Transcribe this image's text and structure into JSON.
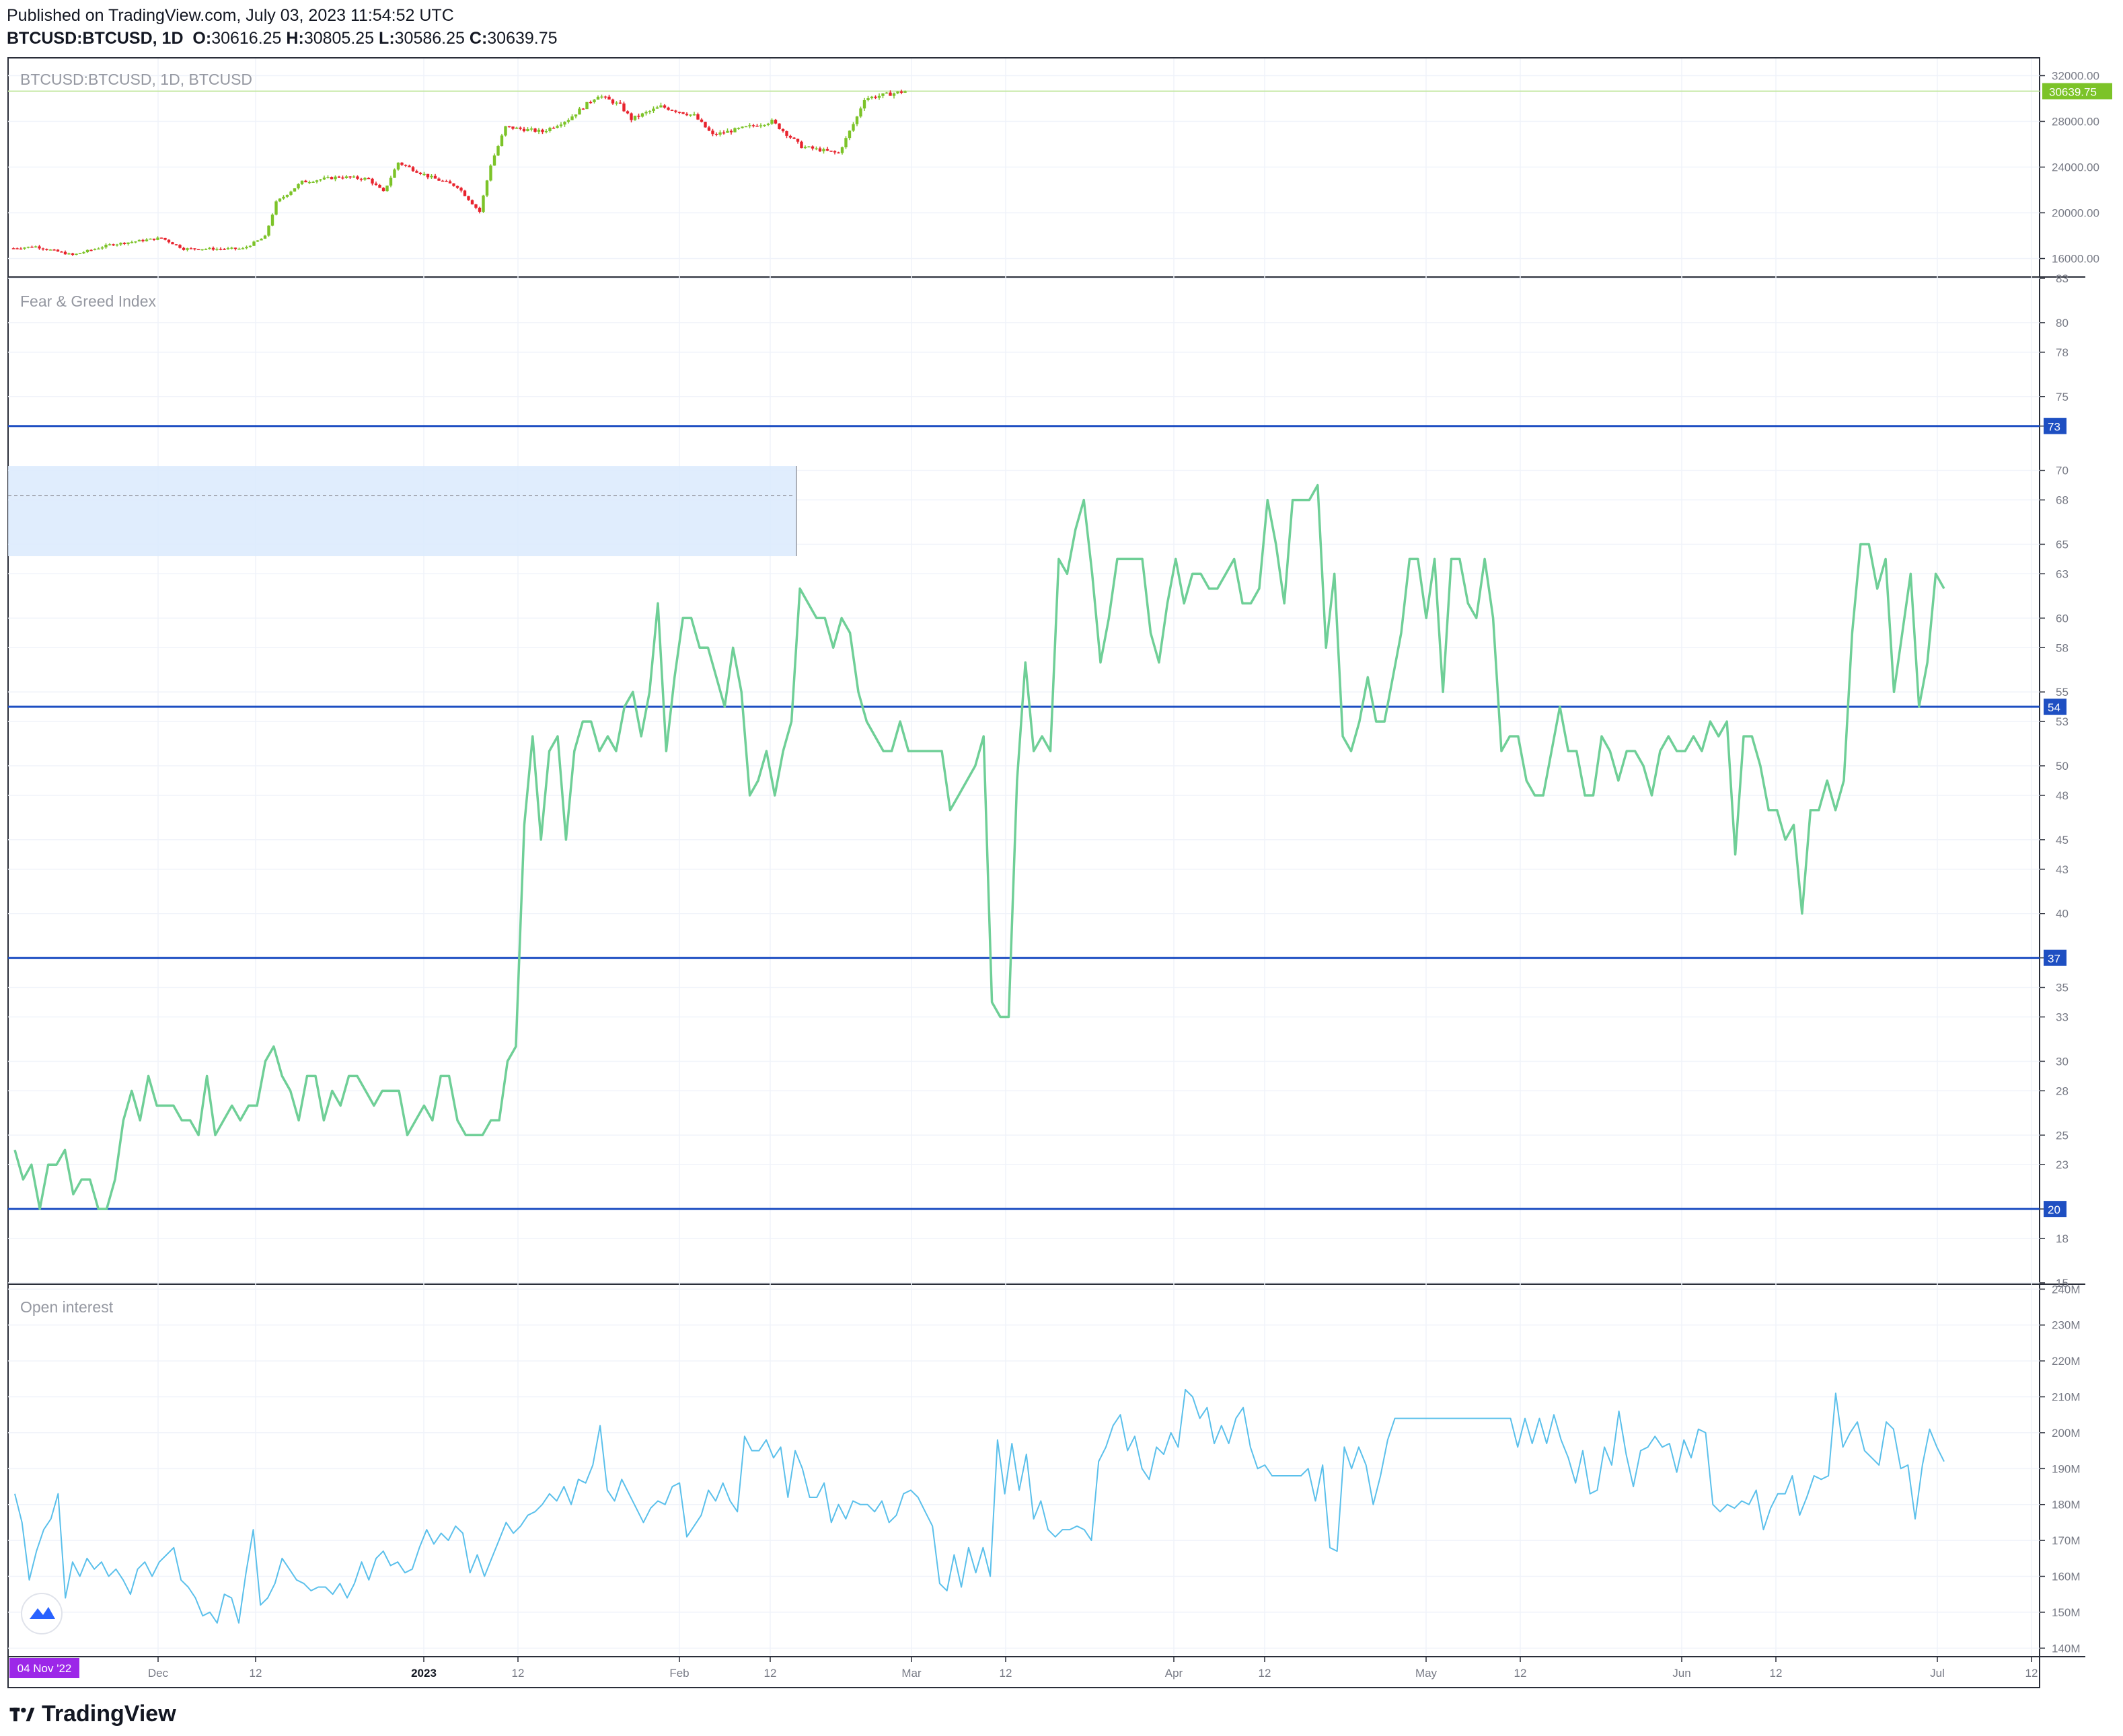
{
  "header": {
    "published": "Published on TradingView.com, July 03, 2023 11:54:52 UTC",
    "symbol": "BTCUSD:BTCUSD, 1D",
    "o_label": "O:",
    "o": "30616.25",
    "h_label": "H:",
    "h": "30805.25",
    "l_label": "L:",
    "l": "30586.25",
    "c_label": "C:",
    "c": "30639.75"
  },
  "panes": {
    "price_title": "BTCUSD:BTCUSD, 1D, BTCUSD",
    "fg_title": "Fear & Greed Index",
    "oi_title": "Open interest"
  },
  "colors": {
    "up": "#7cc328",
    "down": "#e8232d",
    "fg_line": "#6fcf97",
    "oi_line": "#5bc0eb",
    "hline": "#1e4fc2",
    "grid": "#f0f3fa",
    "price_tag": "#7cc328",
    "date_tag": "#9c27e8"
  },
  "footer": {
    "brand": "TradingView"
  },
  "date_tag": "04 Nov '22",
  "chart_data": [
    {
      "type": "candlestick",
      "title": "BTCUSD:BTCUSD, 1D, BTCUSD",
      "y_ticks": [
        "32000.00",
        "28000.00",
        "24000.00",
        "20000.00",
        "16000.00"
      ],
      "last_price": "30639.75",
      "ylim": [
        14500,
        33500
      ],
      "close_path": [
        {
          "date": "2022-11-04",
          "close": 16900
        },
        {
          "date": "2022-11-10",
          "close": 17050
        },
        {
          "date": "2022-11-20",
          "close": 16300
        },
        {
          "date": "2022-11-30",
          "close": 17200
        },
        {
          "date": "2022-12-14",
          "close": 17800
        },
        {
          "date": "2022-12-20",
          "close": 16850
        },
        {
          "date": "2023-01-05",
          "close": 16850
        },
        {
          "date": "2023-01-11",
          "close": 17900
        },
        {
          "date": "2023-01-14",
          "close": 20900
        },
        {
          "date": "2023-01-21",
          "close": 22700
        },
        {
          "date": "2023-01-31",
          "close": 23150
        },
        {
          "date": "2023-02-08",
          "close": 22950
        },
        {
          "date": "2023-02-12",
          "close": 21800
        },
        {
          "date": "2023-02-16",
          "close": 24400
        },
        {
          "date": "2023-02-24",
          "close": 23200
        },
        {
          "date": "2023-03-04",
          "close": 22300
        },
        {
          "date": "2023-03-10",
          "close": 20100
        },
        {
          "date": "2023-03-13",
          "close": 24200
        },
        {
          "date": "2023-03-17",
          "close": 27500
        },
        {
          "date": "2023-03-27",
          "close": 27100
        },
        {
          "date": "2023-04-03",
          "close": 28200
        },
        {
          "date": "2023-04-11",
          "close": 30300
        },
        {
          "date": "2023-04-17",
          "close": 29400
        },
        {
          "date": "2023-04-20",
          "close": 28200
        },
        {
          "date": "2023-04-28",
          "close": 29300
        },
        {
          "date": "2023-05-07",
          "close": 28500
        },
        {
          "date": "2023-05-12",
          "close": 26800
        },
        {
          "date": "2023-05-28",
          "close": 28000
        },
        {
          "date": "2023-06-05",
          "close": 25800
        },
        {
          "date": "2023-06-15",
          "close": 25200
        },
        {
          "date": "2023-06-20",
          "close": 28400
        },
        {
          "date": "2023-06-22",
          "close": 30000
        },
        {
          "date": "2023-07-03",
          "close": 30640
        }
      ]
    },
    {
      "type": "line",
      "title": "Fear & Greed Index",
      "y_ticks": [
        83,
        80,
        78,
        75,
        73,
        70,
        68,
        65,
        63,
        60,
        58,
        55,
        53,
        50,
        48,
        45,
        43,
        40,
        37,
        35,
        33,
        30,
        28,
        25,
        23,
        20,
        18,
        15
      ],
      "horizontal_lines": [
        73,
        54,
        37,
        20
      ],
      "ylim": [
        15,
        83
      ],
      "values": [
        24,
        22,
        23,
        20,
        23,
        23,
        24,
        21,
        22,
        22,
        20,
        20,
        22,
        26,
        28,
        26,
        29,
        27,
        27,
        27,
        26,
        26,
        25,
        29,
        25,
        26,
        27,
        26,
        27,
        27,
        30,
        31,
        29,
        28,
        26,
        29,
        29,
        26,
        28,
        27,
        29,
        29,
        28,
        27,
        28,
        28,
        28,
        25,
        26,
        27,
        26,
        29,
        29,
        26,
        25,
        25,
        25,
        26,
        26,
        30,
        31,
        46,
        52,
        45,
        51,
        52,
        45,
        51,
        53,
        53,
        51,
        52,
        51,
        54,
        55,
        52,
        55,
        61,
        51,
        56,
        60,
        60,
        58,
        58,
        56,
        54,
        58,
        55,
        48,
        49,
        51,
        48,
        51,
        53,
        62,
        61,
        60,
        60,
        58,
        60,
        59,
        55,
        53,
        52,
        51,
        51,
        53,
        51,
        51,
        51,
        51,
        51,
        47,
        48,
        49,
        50,
        52,
        34,
        33,
        33,
        49,
        57,
        51,
        52,
        51,
        64,
        63,
        66,
        68,
        63,
        57,
        60,
        64,
        64,
        64,
        64,
        59,
        57,
        61,
        64,
        61,
        63,
        63,
        62,
        62,
        63,
        64,
        61,
        61,
        62,
        68,
        65,
        61,
        68,
        68,
        68,
        69,
        58,
        63,
        52,
        51,
        53,
        56,
        53,
        53,
        56,
        59,
        64,
        64,
        60,
        64,
        55,
        64,
        64,
        61,
        60,
        64,
        60,
        51,
        52,
        52,
        49,
        48,
        48,
        51,
        54,
        51,
        51,
        48,
        48,
        52,
        51,
        49,
        51,
        51,
        50,
        48,
        51,
        52,
        51,
        51,
        52,
        51,
        53,
        52,
        53,
        44,
        52,
        52,
        50,
        47,
        47,
        45,
        46,
        40,
        47,
        47,
        49,
        47,
        49,
        59,
        65,
        65,
        62,
        64,
        55,
        59,
        63,
        54,
        57,
        63,
        62
      ]
    },
    {
      "type": "line",
      "title": "Open interest",
      "y_ticks": [
        "240M",
        "230M",
        "220M",
        "210M",
        "200M",
        "190M",
        "180M",
        "170M",
        "160M",
        "150M",
        "140M"
      ],
      "ylim": [
        138,
        241
      ],
      "unit": "M",
      "values": [
        183,
        175,
        159,
        167,
        173,
        176,
        183,
        154,
        164,
        160,
        165,
        162,
        164,
        160,
        162,
        159,
        155,
        162,
        164,
        160,
        164,
        166,
        168,
        159,
        157,
        154,
        149,
        150,
        147,
        155,
        154,
        147,
        161,
        173,
        152,
        154,
        158,
        165,
        162,
        159,
        158,
        156,
        157,
        157,
        155,
        158,
        154,
        158,
        164,
        159,
        165,
        167,
        163,
        164,
        161,
        162,
        168,
        173,
        169,
        172,
        170,
        174,
        172,
        161,
        166,
        160,
        165,
        170,
        175,
        172,
        174,
        177,
        178,
        180,
        183,
        181,
        185,
        180,
        187,
        186,
        191,
        202,
        184,
        181,
        187,
        183,
        179,
        175,
        179,
        181,
        180,
        185,
        186,
        171,
        174,
        177,
        184,
        181,
        186,
        181,
        178,
        199,
        195,
        195,
        198,
        193,
        196,
        182,
        195,
        190,
        182,
        182,
        186,
        175,
        180,
        176,
        181,
        180,
        180,
        178,
        181,
        175,
        177,
        183,
        184,
        182,
        178,
        174,
        158,
        156,
        166,
        157,
        168,
        161,
        168,
        160,
        198,
        183,
        197,
        184,
        194,
        176,
        181,
        173,
        171,
        173,
        173,
        174,
        173,
        170,
        192,
        196,
        202,
        205,
        195,
        199,
        190,
        187,
        196,
        194,
        200,
        196,
        212,
        210,
        204,
        207,
        197,
        202,
        197,
        204,
        207,
        196,
        190,
        191,
        188,
        188,
        188,
        188,
        188,
        190,
        181,
        191,
        168,
        167,
        196,
        190,
        196,
        191,
        180,
        188,
        198,
        204,
        204,
        204,
        204,
        204,
        204,
        204,
        204,
        204,
        204,
        204,
        204,
        204,
        204,
        204,
        204,
        204,
        196,
        204,
        197,
        204,
        197,
        205,
        198,
        193,
        186,
        195,
        183,
        184,
        196,
        191,
        206,
        194,
        185,
        195,
        196,
        199,
        196,
        197,
        189,
        198,
        193,
        201,
        200,
        180,
        178,
        180,
        179,
        181,
        180,
        184,
        173,
        179,
        183,
        183,
        188,
        177,
        182,
        188,
        187,
        188,
        211,
        196,
        200,
        203,
        195,
        193,
        191,
        203,
        201,
        190,
        191,
        176,
        191,
        201,
        196,
        192
      ]
    }
  ],
  "x_axis": [
    "Dec",
    "12",
    "2023",
    "12",
    "Feb",
    "12",
    "Mar",
    "12",
    "Apr",
    "12",
    "May",
    "12",
    "Jun",
    "12",
    "Jul",
    "12"
  ]
}
